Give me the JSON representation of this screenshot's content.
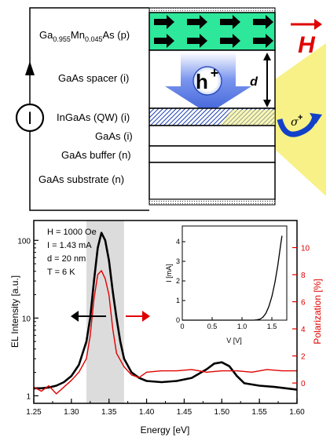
{
  "device": {
    "layers": [
      {
        "label": "Ga0.955Mn0.045As (p)"
      },
      {
        "label": "GaAs spacer (i)"
      },
      {
        "label": "InGaAs (QW) (i)"
      },
      {
        "label": "GaAs (i)"
      },
      {
        "label": "GaAs buffer (n)"
      },
      {
        "label": "GaAs substrate (n)"
      }
    ],
    "gamn": {
      "base": "Ga",
      "sub1": "0.955",
      "mid": "Mn",
      "sub2": "0.045",
      "tail": "As (p)"
    },
    "current_symbol": "I",
    "hole_symbol": "h",
    "hole_sup": "+",
    "thickness_label": "d",
    "field_label": "H",
    "sigma_label": "σ",
    "sigma_sup": "+",
    "colors": {
      "magnet": "#2de89a",
      "hole": "#4a6fe0",
      "light": "#f7f07a",
      "field": "#e00000",
      "sigma_arrow": "#1240c8"
    }
  },
  "chart_data": [
    {
      "type": "line",
      "xlabel": "Energy [eV]",
      "ylabel_left": "EL Intensity [a.u.]",
      "ylabel_right": "Polarization [%]",
      "x_ticks": [
        "1.25",
        "1.30",
        "1.35",
        "1.40",
        "1.45",
        "1.50",
        "1.55",
        "1.60"
      ],
      "y_left_ticks": [
        "1",
        "10",
        "100"
      ],
      "y_right_ticks": [
        "0",
        "2",
        "4",
        "6",
        "8",
        "10"
      ],
      "xlim": [
        1.25,
        1.6
      ],
      "ylim_left": [
        0.8,
        180
      ],
      "y_left_scale": "log",
      "ylim_right": [
        -1.5,
        12
      ],
      "annotations": [
        "H = 1000 Oe",
        "I = 1.43 mA",
        "d = 20 nm",
        "T = 6 K"
      ],
      "shaded_region": [
        1.32,
        1.37
      ],
      "series": [
        {
          "color": "#000000",
          "axis": "left",
          "x": [
            1.25,
            1.26,
            1.27,
            1.28,
            1.29,
            1.3,
            1.31,
            1.32,
            1.325,
            1.33,
            1.335,
            1.34,
            1.345,
            1.35,
            1.355,
            1.36,
            1.365,
            1.37,
            1.38,
            1.39,
            1.4,
            1.42,
            1.44,
            1.46,
            1.48,
            1.49,
            1.5,
            1.51,
            1.52,
            1.53,
            1.55,
            1.57,
            1.6
          ],
          "y": [
            1.25,
            1.25,
            1.28,
            1.35,
            1.5,
            1.8,
            2.5,
            5,
            10,
            30,
            80,
            125,
            100,
            55,
            22,
            10,
            5,
            3,
            2.0,
            1.7,
            1.55,
            1.5,
            1.55,
            1.7,
            2.2,
            2.6,
            2.7,
            2.4,
            1.8,
            1.45,
            1.35,
            1.3,
            1.2
          ]
        },
        {
          "color": "#e00000",
          "axis": "right",
          "x": [
            1.25,
            1.26,
            1.27,
            1.28,
            1.29,
            1.3,
            1.31,
            1.32,
            1.325,
            1.33,
            1.335,
            1.34,
            1.345,
            1.35,
            1.355,
            1.36,
            1.365,
            1.37,
            1.38,
            1.39,
            1.4,
            1.42,
            1.44,
            1.46,
            1.48,
            1.5,
            1.52,
            1.54,
            1.56,
            1.58,
            1.6
          ],
          "y": [
            -0.3,
            -0.6,
            -0.2,
            -0.8,
            -0.3,
            0.2,
            0.8,
            1.8,
            3.5,
            6.2,
            8.0,
            8.3,
            7.7,
            6.5,
            4.0,
            2.2,
            1.7,
            1.2,
            0.6,
            0.4,
            0.8,
            0.9,
            0.9,
            1.0,
            0.8,
            0.9,
            0.9,
            0.8,
            1.0,
            0.9,
            0.9
          ]
        }
      ]
    },
    {
      "type": "line",
      "xlabel": "V [V]",
      "ylabel": "I [mA]",
      "x_ticks": [
        "0",
        "0.5",
        "1.0",
        "1.5"
      ],
      "y_ticks": [
        "0",
        "1",
        "2",
        "3",
        "4"
      ],
      "xlim": [
        0,
        1.75
      ],
      "ylim": [
        0,
        4.8
      ],
      "series": [
        {
          "x": [
            0,
            0.5,
            1.0,
            1.2,
            1.25,
            1.3,
            1.35,
            1.4,
            1.45,
            1.5,
            1.55,
            1.6,
            1.65,
            1.67
          ],
          "y": [
            0,
            0,
            0,
            0,
            0.02,
            0.05,
            0.15,
            0.35,
            0.7,
            1.2,
            1.9,
            2.8,
            3.9,
            4.3
          ]
        }
      ]
    }
  ]
}
